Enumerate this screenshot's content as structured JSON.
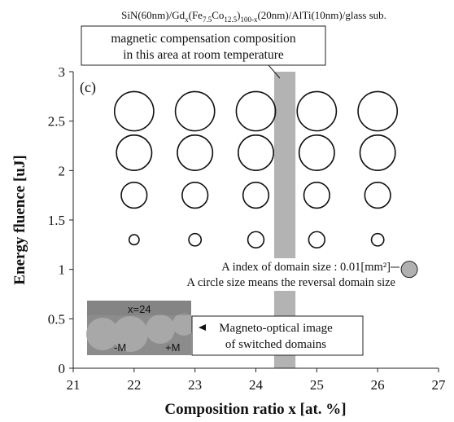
{
  "chart_data": {
    "type": "scatter",
    "title_parts": {
      "p1": "SiN(60nm)/Gd",
      "sub1": "x",
      "p2": "(Fe",
      "sub2": "7.5",
      "p3": "Co",
      "sub3": "12.5",
      "p4": ")",
      "sub4": "100-x",
      "p5": "(20nm)/AlTi(10nm)/glass sub."
    },
    "xlabel": "Composition ratio x [at. %]",
    "ylabel": "Energy fluence [uJ]",
    "panel_label": "(c)",
    "xlim": [
      21,
      27
    ],
    "ylim": [
      0,
      3
    ],
    "x_ticks": [
      "21",
      "22",
      "23",
      "24",
      "25",
      "26",
      "27"
    ],
    "y_ticks": [
      "0",
      "0.5",
      "1",
      "1.5",
      "2",
      "2.5",
      "3"
    ],
    "compensation_band": {
      "x_from": 24.3,
      "x_to": 24.65,
      "color": "#b3b3b3"
    },
    "annotation_compensation": [
      "magnetic compensation composition",
      "in this area at room temperature"
    ],
    "annotation_index": [
      "A index of domain size : 0.01[mm²]",
      "A circle size means the reversal domain size"
    ],
    "index_marker": {
      "x": 26.52,
      "y": 1.0,
      "size": 0.01,
      "color": "#b0b0b0"
    },
    "annotation_image": [
      "Magneto-optical image",
      "of switched domains"
    ],
    "inset_image": {
      "label": "x=24",
      "minus_label": "-M",
      "plus_label": "+M"
    },
    "series": [
      {
        "y": 2.6,
        "points": [
          {
            "x": 22,
            "size": 0.058
          },
          {
            "x": 23,
            "size": 0.058
          },
          {
            "x": 24,
            "size": 0.058
          },
          {
            "x": 25,
            "size": 0.058
          },
          {
            "x": 26,
            "size": 0.058
          }
        ]
      },
      {
        "y": 2.18,
        "points": [
          {
            "x": 22,
            "size": 0.047
          },
          {
            "x": 23,
            "size": 0.047
          },
          {
            "x": 24,
            "size": 0.047
          },
          {
            "x": 25,
            "size": 0.047
          },
          {
            "x": 26,
            "size": 0.047
          }
        ]
      },
      {
        "y": 1.75,
        "points": [
          {
            "x": 22,
            "size": 0.025
          },
          {
            "x": 23,
            "size": 0.025
          },
          {
            "x": 24,
            "size": 0.025
          },
          {
            "x": 25,
            "size": 0.025
          },
          {
            "x": 26,
            "size": 0.025
          }
        ]
      },
      {
        "y": 1.3,
        "points": [
          {
            "x": 22,
            "size": 0.0038
          },
          {
            "x": 23,
            "size": 0.0058
          },
          {
            "x": 24,
            "size": 0.0098
          },
          {
            "x": 25,
            "size": 0.0098
          },
          {
            "x": 26,
            "size": 0.0058
          }
        ]
      }
    ]
  }
}
